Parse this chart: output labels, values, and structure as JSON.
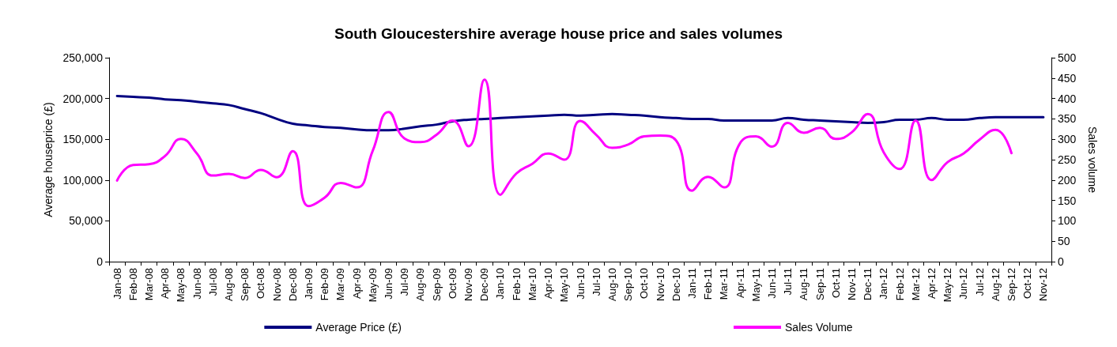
{
  "chart_data": {
    "type": "line",
    "title": "South Gloucestershire average house price and sales volumes",
    "ylabel": "Average houseprice (£)",
    "y2label": "Sales volume",
    "categories": [
      "Jan-08",
      "Feb-08",
      "Mar-08",
      "Apr-08",
      "May-08",
      "Jun-08",
      "Jul-08",
      "Aug-08",
      "Sep-08",
      "Oct-08",
      "Nov-08",
      "Dec-08",
      "Jan-09",
      "Feb-09",
      "Mar-09",
      "Apr-09",
      "May-09",
      "Jun-09",
      "Jul-09",
      "Aug-09",
      "Sep-09",
      "Oct-09",
      "Nov-09",
      "Dec-09",
      "Jan-10",
      "Feb-10",
      "Mar-10",
      "Apr-10",
      "May-10",
      "Jun-10",
      "Jul-10",
      "Aug-10",
      "Sep-10",
      "Oct-10",
      "Nov-10",
      "Dec-10",
      "Jan-11",
      "Feb-11",
      "Mar-11",
      "Apr-11",
      "May-11",
      "Jun-11",
      "Jul-11",
      "Aug-11",
      "Sep-11",
      "Oct-11",
      "Nov-11",
      "Dec-11",
      "Jan-12",
      "Feb-12",
      "Mar-12",
      "Apr-12",
      "May-12",
      "Jun-12",
      "Jul-12",
      "Aug-12",
      "Sep-12",
      "Oct-12",
      "Nov-12"
    ],
    "series": [
      {
        "name": "Average Price (£)",
        "color": "#000080",
        "values": [
          203000,
          202000,
          201000,
          199000,
          198000,
          196000,
          194000,
          192000,
          187000,
          182000,
          175000,
          169000,
          167000,
          165000,
          164000,
          162000,
          161000,
          161000,
          163000,
          166000,
          168000,
          172000,
          174000,
          175000,
          176000,
          177000,
          178000,
          179000,
          180000,
          179000,
          180000,
          181000,
          180000,
          179000,
          177000,
          176000,
          175000,
          175000,
          173000,
          173000,
          173000,
          173000,
          176000,
          174000,
          173000,
          172000,
          171000,
          170000,
          171000,
          174000,
          174000,
          176000,
          174000,
          174000,
          176000,
          177000,
          177000,
          177000,
          177000
        ]
      },
      {
        "name": "Sales Volume",
        "color": "#ff00ff",
        "axis": "y2",
        "values": [
          199,
          237,
          239,
          259,
          301,
          265,
          211,
          215,
          205,
          225,
          207,
          271,
          136,
          157,
          193,
          182,
          271,
          367,
          302,
          293,
          311,
          346,
          283,
          446,
          164,
          216,
          240,
          265,
          250,
          345,
          311,
          279,
          287,
          307,
          309,
          297,
          174,
          208,
          182,
          290,
          307,
          282,
          340,
          316,
          328,
          301,
          317,
          362,
          268,
          227,
          346,
          200,
          244,
          265,
          299,
          323,
          266,
          null,
          null
        ]
      }
    ],
    "ylim": [
      0,
      250000
    ],
    "yticks": [
      {
        "value": 0,
        "label": "0"
      },
      {
        "value": 50000,
        "label": "50,000"
      },
      {
        "value": 100000,
        "label": "100,000"
      },
      {
        "value": 150000,
        "label": "150,000"
      },
      {
        "value": 200000,
        "label": "200,000"
      },
      {
        "value": 250000,
        "label": "250,000"
      }
    ],
    "y2lim": [
      0,
      500
    ],
    "y2ticks": [
      0,
      50,
      100,
      150,
      200,
      250,
      300,
      350,
      400,
      450,
      500
    ],
    "grid": false,
    "legend": "bottom",
    "marker": "none",
    "line_style": "solid"
  }
}
